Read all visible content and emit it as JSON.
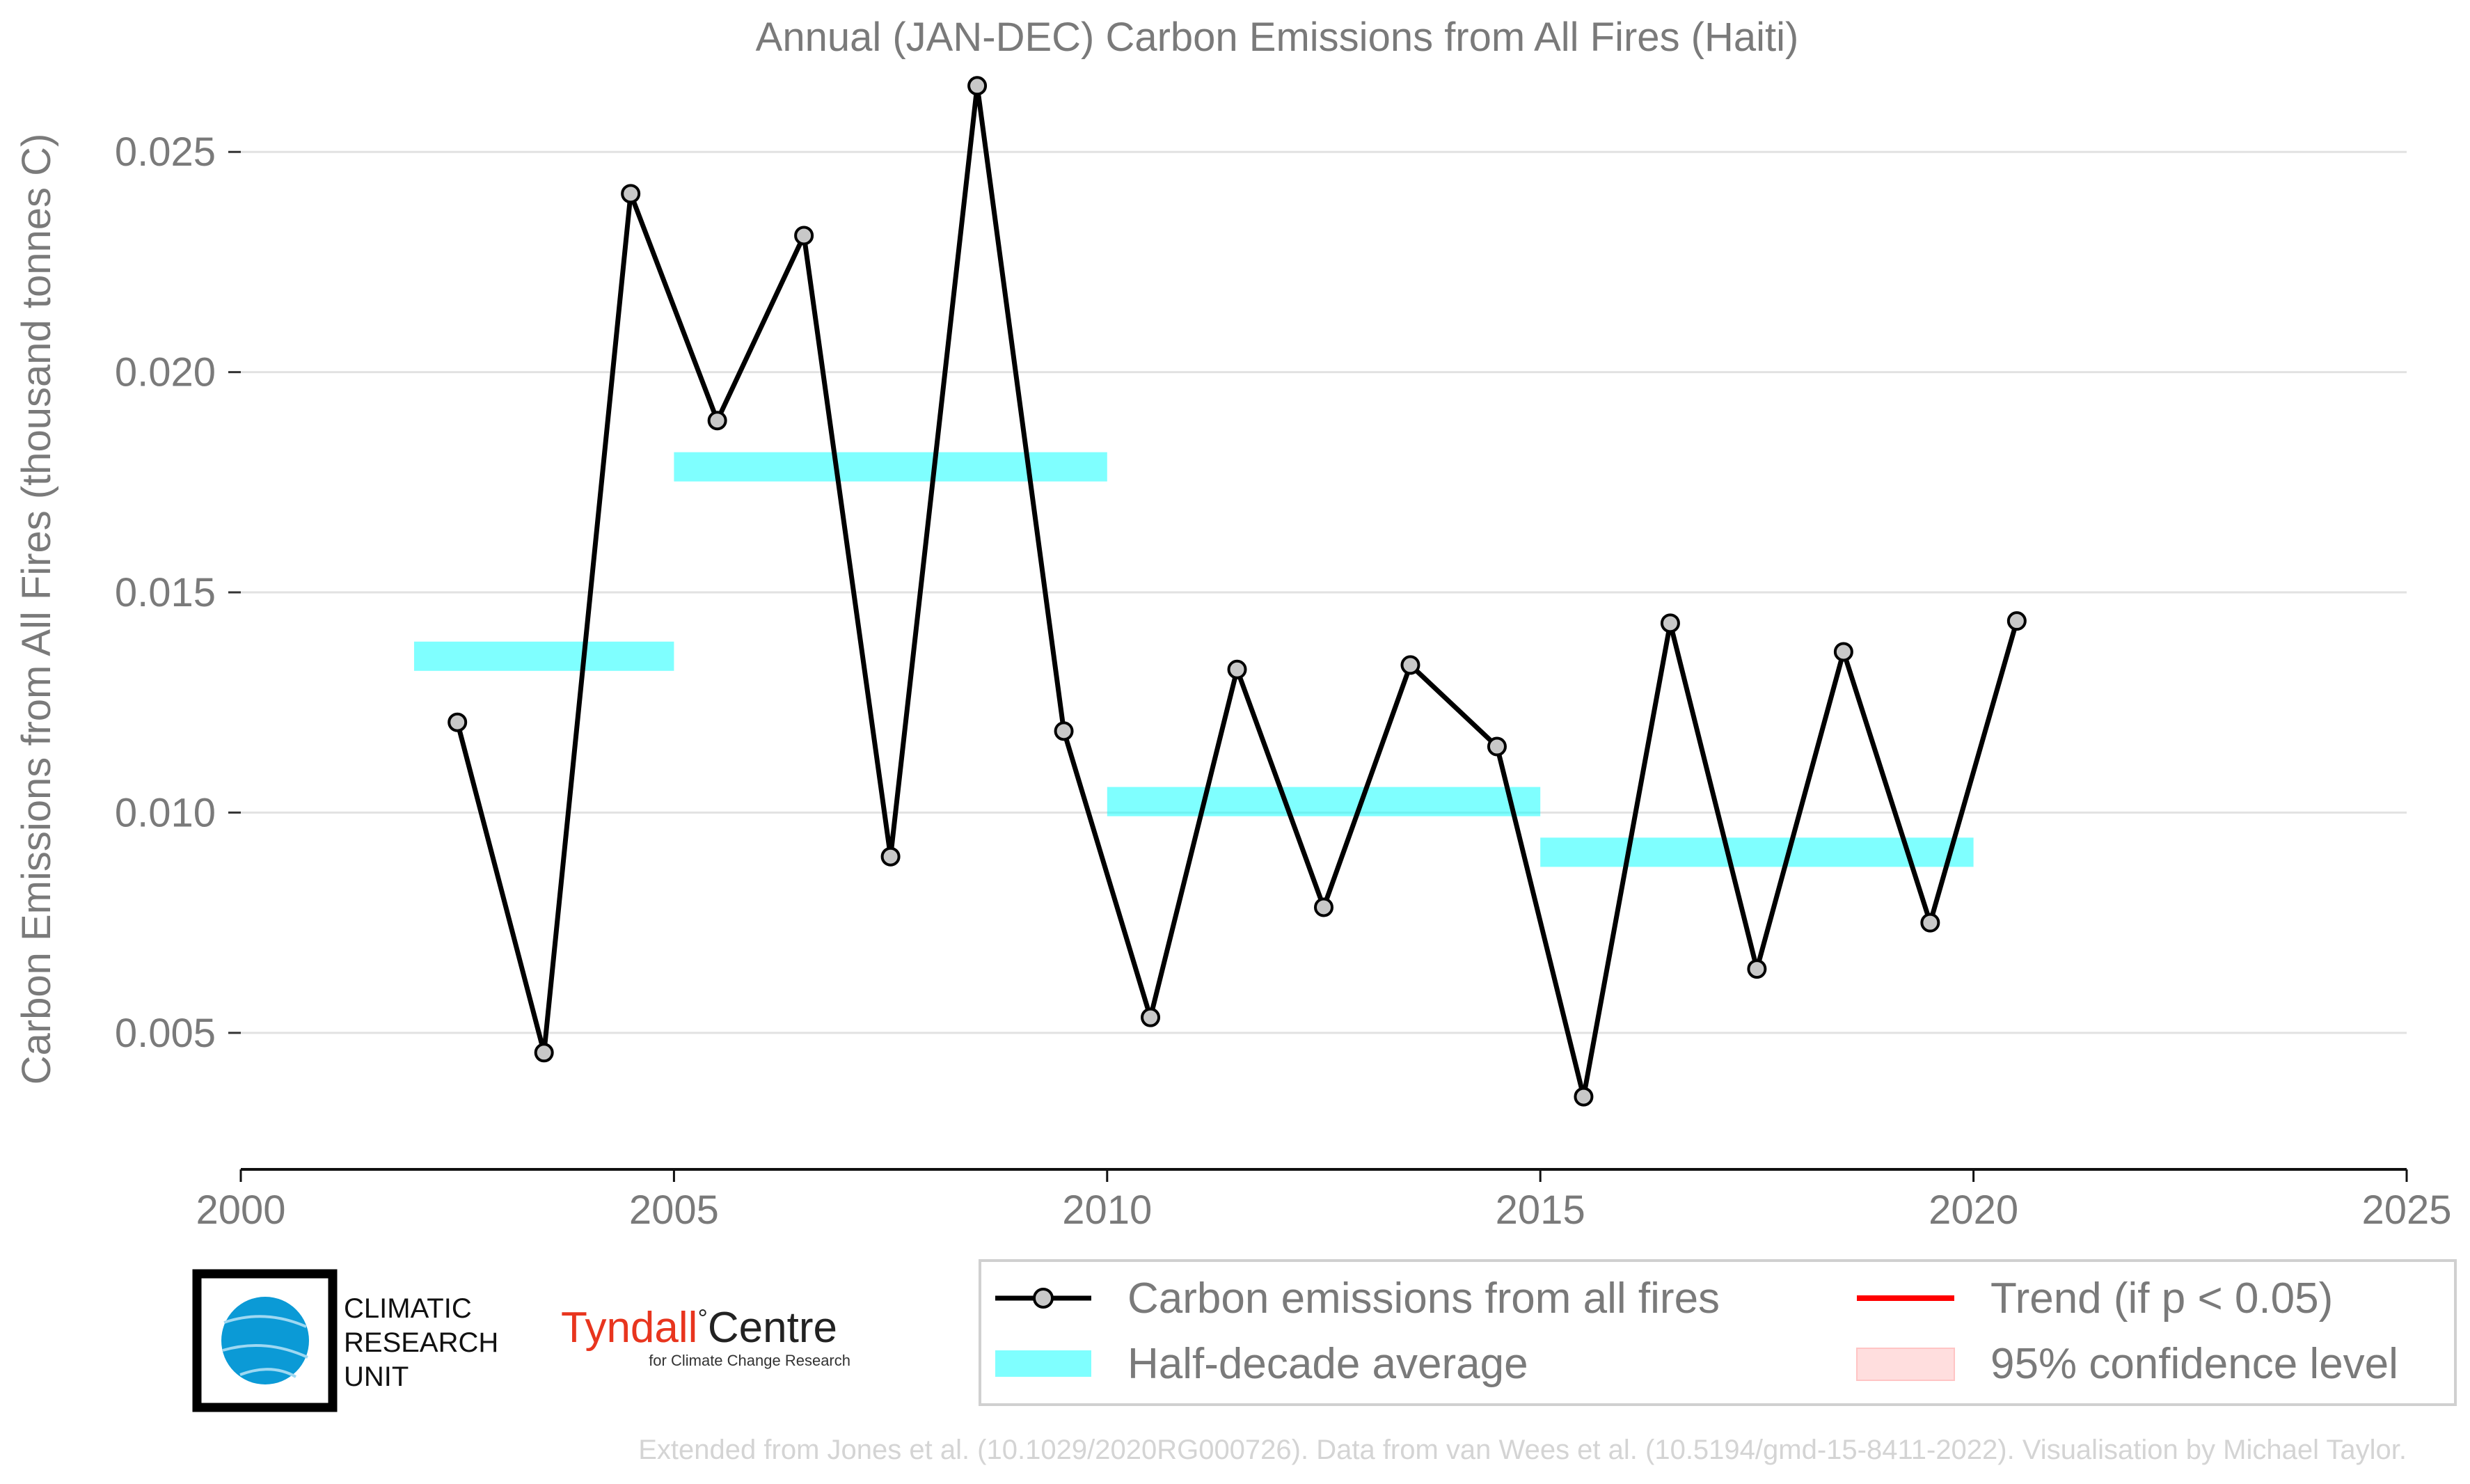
{
  "chart_data": {
    "type": "line",
    "title": "Annual (JAN-DEC) Carbon Emissions from All Fires (Haiti)",
    "xlabel": "",
    "ylabel": "Carbon Emissions from All Fires (thousand tonnes C)",
    "xlim": [
      2000,
      2025
    ],
    "ylim": [
      0.0019,
      0.0275
    ],
    "x_ticks": [
      "2000",
      "2005",
      "2010",
      "2015",
      "2020",
      "2025"
    ],
    "y_ticks": [
      "0.005",
      "0.010",
      "0.015",
      "0.020",
      "0.025"
    ],
    "grid": "horizontal",
    "series": [
      {
        "name": "Carbon emissions from all fires",
        "color": "#000000",
        "marker_fill": "#c8c8c8",
        "x": [
          2002.5,
          2003.5,
          2004.5,
          2005.5,
          2006.5,
          2007.5,
          2008.5,
          2009.5,
          2010.5,
          2011.5,
          2012.5,
          2013.5,
          2014.5,
          2015.5,
          2016.5,
          2017.5,
          2018.5,
          2019.5,
          2020.5
        ],
        "y": [
          0.01205,
          0.00455,
          0.02405,
          0.0189,
          0.0231,
          0.009,
          0.0265,
          0.01185,
          0.00535,
          0.01325,
          0.00785,
          0.01335,
          0.0115,
          0.00355,
          0.0143,
          0.00645,
          0.01365,
          0.0075,
          0.01435
        ]
      }
    ],
    "half_decade_average": {
      "name": "Half-decade average",
      "color": "#00ffff",
      "segments": [
        {
          "x0": 2002,
          "x1": 2005,
          "y": 0.01355
        },
        {
          "x0": 2005,
          "x1": 2010,
          "y": 0.01785
        },
        {
          "x0": 2010,
          "x1": 2015,
          "y": 0.01025
        },
        {
          "x0": 2015,
          "x1": 2020,
          "y": 0.0091
        }
      ]
    },
    "legend": {
      "placement": "bottom-right",
      "entries": [
        {
          "label": "Carbon emissions from all fires",
          "kind": "line-marker",
          "color": "#000000"
        },
        {
          "label": "Trend (if p < 0.05)",
          "kind": "line",
          "color": "#ff0000"
        },
        {
          "label": "Half-decade average",
          "kind": "band",
          "color": "#00ffff"
        },
        {
          "label": "95% confidence level",
          "kind": "patch",
          "color": "#ffdede"
        }
      ]
    }
  },
  "logos": {
    "cru": [
      "CLIMATIC",
      "RESEARCH",
      "UNIT"
    ],
    "tyndall_main_red": "Tyndall",
    "tyndall_degree": "°",
    "tyndall_main_black": "Centre",
    "tyndall_sub": "for Climate Change Research"
  },
  "credit": "Extended from Jones et al. (10.1029/2020RG000726). Data from van Wees et al. (10.5194/gmd-15-8411-2022). Visualisation by Michael Taylor."
}
